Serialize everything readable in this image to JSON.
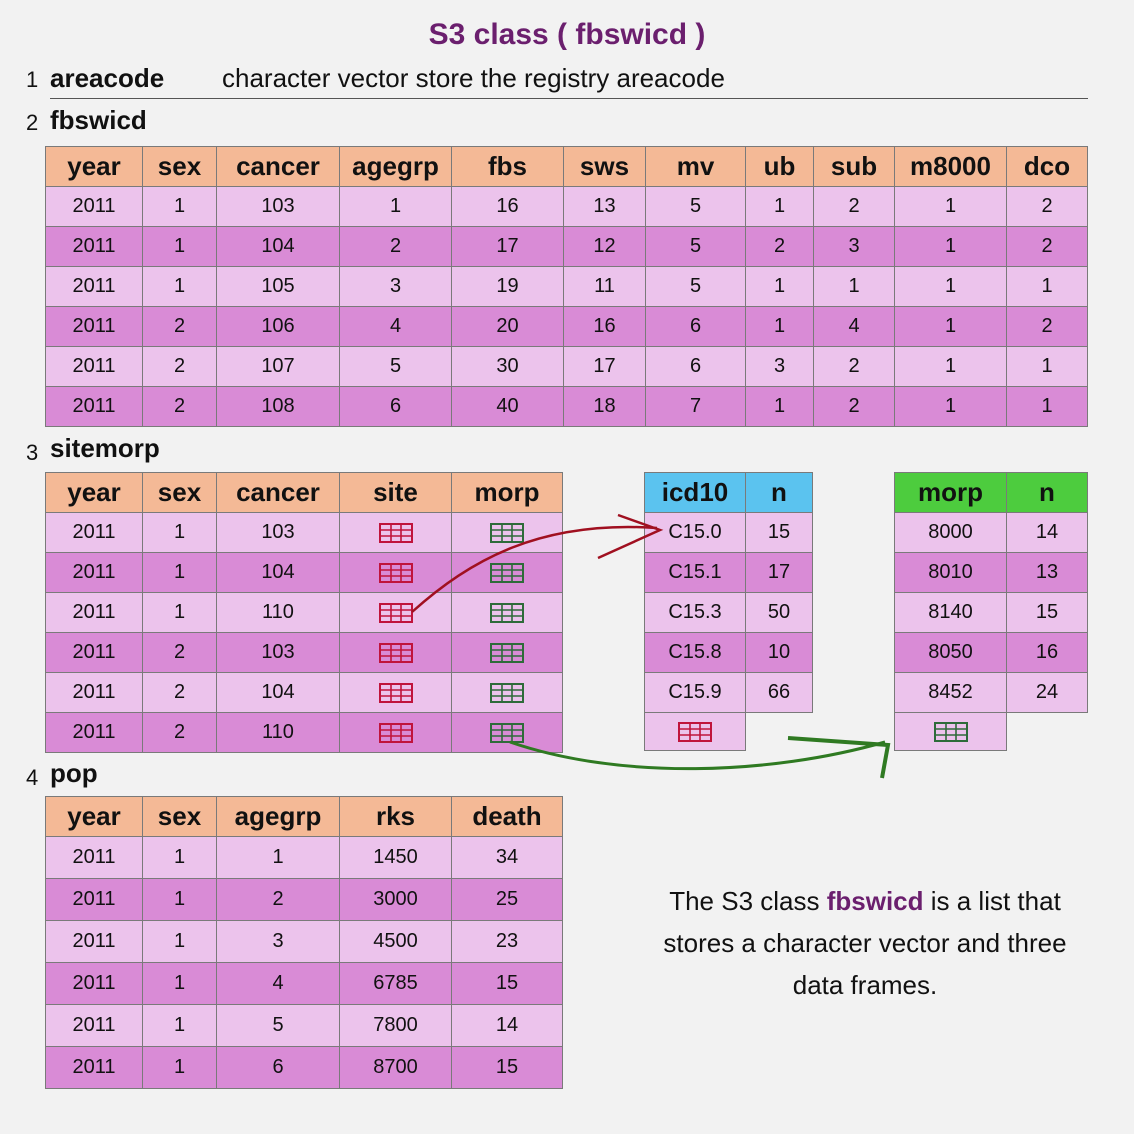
{
  "title": "S3 class ( fbswicd )",
  "colors": {
    "title": "#6b1f6e",
    "header": "#f4b996",
    "row_light": "#ecc3ec",
    "row_dark": "#d98bd6",
    "icd_header": "#5bc3ef",
    "morp_header": "#4dcc3e",
    "site_icon": "#c0143c",
    "morp_icon": "#2e6b3a",
    "arrow_red": "#a01020",
    "arrow_green": "#2f7a22"
  },
  "sections": [
    {
      "num": "1",
      "name": "areacode",
      "desc": "character vector store the registry areacode"
    },
    {
      "num": "2",
      "name": "fbswicd"
    },
    {
      "num": "3",
      "name": "sitemorp"
    },
    {
      "num": "4",
      "name": "pop"
    }
  ],
  "fbswicd": {
    "headers": [
      "year",
      "sex",
      "cancer",
      "agegrp",
      "fbs",
      "sws",
      "mv",
      "ub",
      "sub",
      "m8000",
      "dco"
    ],
    "rows": [
      [
        "2011",
        "1",
        "103",
        "1",
        "16",
        "13",
        "5",
        "1",
        "2",
        "1",
        "2"
      ],
      [
        "2011",
        "1",
        "104",
        "2",
        "17",
        "12",
        "5",
        "2",
        "3",
        "1",
        "2"
      ],
      [
        "2011",
        "1",
        "105",
        "3",
        "19",
        "11",
        "5",
        "1",
        "1",
        "1",
        "1"
      ],
      [
        "2011",
        "2",
        "106",
        "4",
        "20",
        "16",
        "6",
        "1",
        "4",
        "1",
        "2"
      ],
      [
        "2011",
        "2",
        "107",
        "5",
        "30",
        "17",
        "6",
        "3",
        "2",
        "1",
        "1"
      ],
      [
        "2011",
        "2",
        "108",
        "6",
        "40",
        "18",
        "7",
        "1",
        "2",
        "1",
        "1"
      ]
    ]
  },
  "sitemorp": {
    "headers": [
      "year",
      "sex",
      "cancer",
      "site",
      "morp"
    ],
    "rows": [
      [
        "2011",
        "1",
        "103"
      ],
      [
        "2011",
        "1",
        "104"
      ],
      [
        "2011",
        "1",
        "110"
      ],
      [
        "2011",
        "2",
        "103"
      ],
      [
        "2011",
        "2",
        "104"
      ],
      [
        "2011",
        "2",
        "110"
      ]
    ],
    "site_icon": "table-grid-icon",
    "morp_icon": "table-grid-icon"
  },
  "icd10": {
    "headers": [
      "icd10",
      "n"
    ],
    "rows": [
      [
        "C15.0",
        "15"
      ],
      [
        "C15.1",
        "17"
      ],
      [
        "C15.3",
        "50"
      ],
      [
        "C15.8",
        "10"
      ],
      [
        "C15.9",
        "66"
      ]
    ]
  },
  "morp": {
    "headers": [
      "morp",
      "n"
    ],
    "rows": [
      [
        "8000",
        "14"
      ],
      [
        "8010",
        "13"
      ],
      [
        "8140",
        "15"
      ],
      [
        "8050",
        "16"
      ],
      [
        "8452",
        "24"
      ]
    ]
  },
  "pop": {
    "headers": [
      "year",
      "sex",
      "agegrp",
      "rks",
      "death"
    ],
    "rows": [
      [
        "2011",
        "1",
        "1",
        "1450",
        "34"
      ],
      [
        "2011",
        "1",
        "2",
        "3000",
        "25"
      ],
      [
        "2011",
        "1",
        "3",
        "4500",
        "23"
      ],
      [
        "2011",
        "1",
        "4",
        "6785",
        "15"
      ],
      [
        "2011",
        "1",
        "5",
        "7800",
        "14"
      ],
      [
        "2011",
        "1",
        "6",
        "8700",
        "15"
      ]
    ]
  },
  "caption": {
    "pre": "The S3 class ",
    "highlight": "fbswicd",
    "post": " is a list that stores a character vector and three data frames."
  }
}
